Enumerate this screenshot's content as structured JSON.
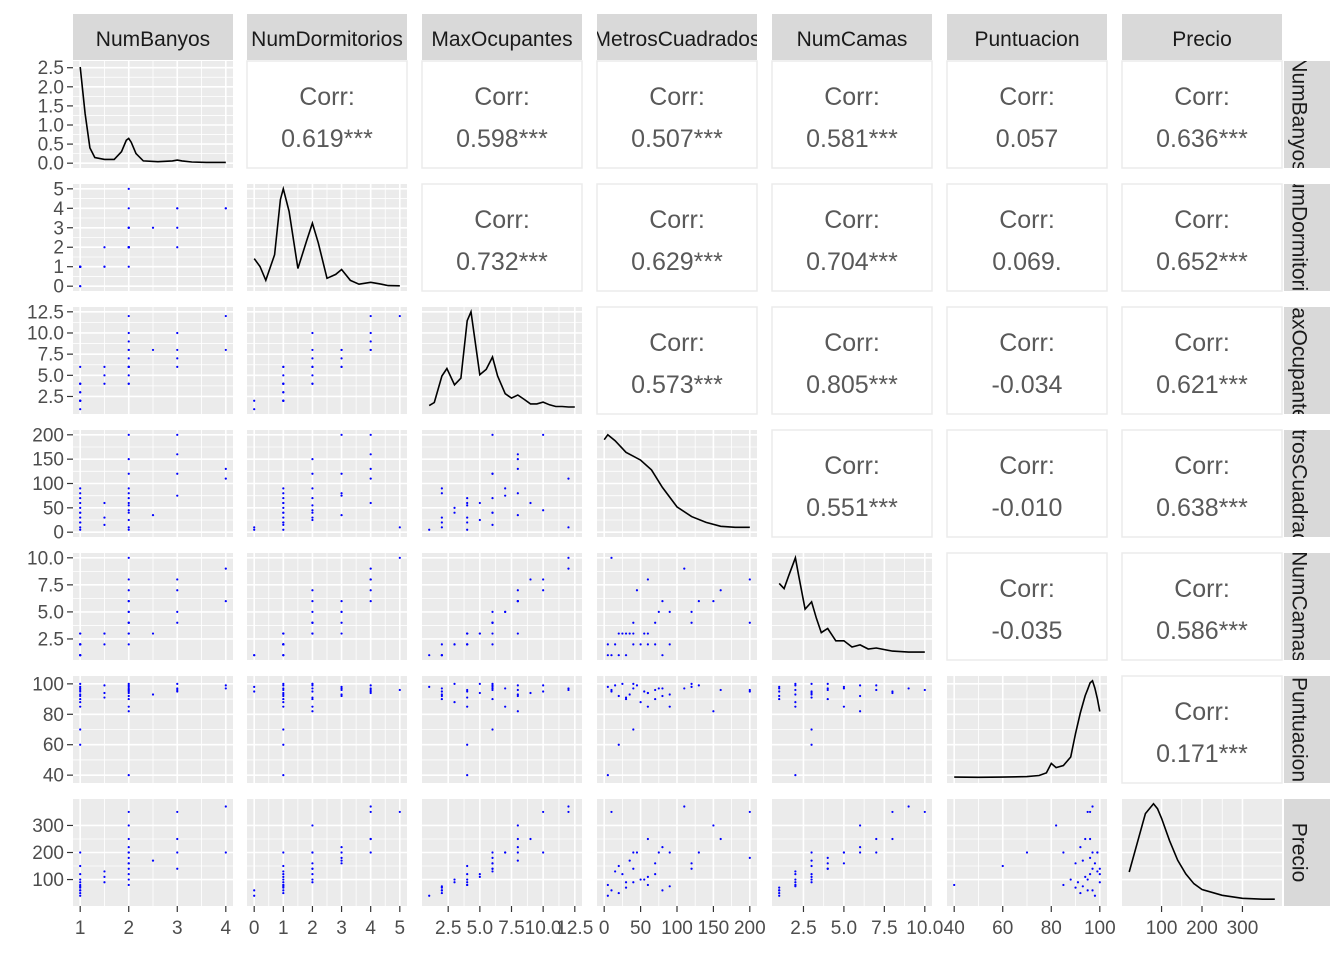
{
  "variables": [
    "NumBanyos",
    "NumDormitorios",
    "MaxOcupantes",
    "MetrosCuadrados",
    "NumCamas",
    "Puntuacion",
    "Precio"
  ],
  "corr_label": "Corr:",
  "colors": {
    "panel": "#ebebeb",
    "grid": "#ffffff",
    "strip": "#d9d9d9",
    "points": "#0000ff",
    "density": "#000000"
  },
  "chart_data": {
    "type": "scatter",
    "subtype": "pairs-matrix",
    "diag": "density",
    "lower": "scatter",
    "upper": "correlation",
    "grid": true,
    "correlations": [
      {
        "row": "NumBanyos",
        "col": "NumDormitorios",
        "text": "0.619***"
      },
      {
        "row": "NumBanyos",
        "col": "MaxOcupantes",
        "text": "0.598***"
      },
      {
        "row": "NumBanyos",
        "col": "MetrosCuadrados",
        "text": "0.507***"
      },
      {
        "row": "NumBanyos",
        "col": "NumCamas",
        "text": "0.581***"
      },
      {
        "row": "NumBanyos",
        "col": "Puntuacion",
        "text": "0.057"
      },
      {
        "row": "NumBanyos",
        "col": "Precio",
        "text": "0.636***"
      },
      {
        "row": "NumDormitorios",
        "col": "MaxOcupantes",
        "text": "0.732***"
      },
      {
        "row": "NumDormitorios",
        "col": "MetrosCuadrados",
        "text": "0.629***"
      },
      {
        "row": "NumDormitorios",
        "col": "NumCamas",
        "text": "0.704***"
      },
      {
        "row": "NumDormitorios",
        "col": "Puntuacion",
        "text": "0.069."
      },
      {
        "row": "NumDormitorios",
        "col": "Precio",
        "text": "0.652***"
      },
      {
        "row": "MaxOcupantes",
        "col": "MetrosCuadrados",
        "text": "0.573***"
      },
      {
        "row": "MaxOcupantes",
        "col": "NumCamas",
        "text": "0.805***"
      },
      {
        "row": "MaxOcupantes",
        "col": "Puntuacion",
        "text": "-0.034"
      },
      {
        "row": "MaxOcupantes",
        "col": "Precio",
        "text": "0.621***"
      },
      {
        "row": "MetrosCuadrados",
        "col": "NumCamas",
        "text": "0.551***"
      },
      {
        "row": "MetrosCuadrados",
        "col": "Puntuacion",
        "text": "-0.010"
      },
      {
        "row": "MetrosCuadrados",
        "col": "Precio",
        "text": "0.638***"
      },
      {
        "row": "NumCamas",
        "col": "Puntuacion",
        "text": "-0.035"
      },
      {
        "row": "NumCamas",
        "col": "Precio",
        "text": "0.586***"
      },
      {
        "row": "Puntuacion",
        "col": "Precio",
        "text": "0.171***"
      }
    ],
    "x_axes": [
      {
        "var": "NumBanyos",
        "range": [
          1,
          4
        ],
        "ticks": [
          1,
          2,
          3,
          4
        ],
        "tick_labels": [
          "1",
          "2",
          "3",
          "4"
        ]
      },
      {
        "var": "NumDormitorios",
        "range": [
          0,
          5
        ],
        "ticks": [
          0,
          1,
          2,
          3,
          4,
          5
        ],
        "tick_labels": [
          "0",
          "1",
          "2",
          "3",
          "4",
          "5"
        ]
      },
      {
        "var": "MaxOcupantes",
        "range": [
          1,
          12.5
        ],
        "ticks": [
          2.5,
          5,
          7.5,
          10,
          12.5
        ],
        "tick_labels": [
          "2.5",
          "5.0",
          "7.5",
          "10.0",
          "12.5"
        ]
      },
      {
        "var": "MetrosCuadrados",
        "range": [
          0,
          200
        ],
        "ticks": [
          0,
          50,
          100,
          150,
          200
        ],
        "tick_labels": [
          "0",
          "50",
          "100",
          "150",
          "200"
        ]
      },
      {
        "var": "NumCamas",
        "range": [
          1,
          10
        ],
        "ticks": [
          2.5,
          5,
          7.5,
          10
        ],
        "tick_labels": [
          "2.5",
          "5.0",
          "7.5",
          "10.0"
        ]
      },
      {
        "var": "Puntuacion",
        "range": [
          40,
          100
        ],
        "ticks": [
          40,
          60,
          80,
          100
        ],
        "tick_labels": [
          "40",
          "60",
          "80",
          "100"
        ]
      },
      {
        "var": "Precio",
        "range": [
          20,
          380
        ],
        "ticks": [
          100,
          200,
          300
        ],
        "tick_labels": [
          "100",
          "200",
          "300"
        ]
      }
    ],
    "y_axes": [
      {
        "var": "NumBanyos",
        "range": [
          0,
          2.55
        ],
        "ticks": [
          0,
          0.5,
          1,
          1.5,
          2,
          2.5
        ],
        "tick_labels": [
          "0.0",
          "0.5",
          "1.0",
          "1.5",
          "2.0",
          "2.5"
        ]
      },
      {
        "var": "NumDormitorios",
        "range": [
          0,
          5
        ],
        "ticks": [
          0,
          1,
          2,
          3,
          4,
          5
        ],
        "tick_labels": [
          "0",
          "1",
          "2",
          "3",
          "4",
          "5"
        ]
      },
      {
        "var": "MaxOcupantes",
        "range": [
          1,
          12.5
        ],
        "ticks": [
          2.5,
          5,
          7.5,
          10,
          12.5
        ],
        "tick_labels": [
          "2.5",
          "5.0",
          "7.5",
          "10.0",
          "12.5"
        ]
      },
      {
        "var": "MetrosCuadrados",
        "range": [
          0,
          200
        ],
        "ticks": [
          0,
          50,
          100,
          150,
          200
        ],
        "tick_labels": [
          "0",
          "50",
          "100",
          "150",
          "200"
        ]
      },
      {
        "var": "NumCamas",
        "range": [
          1,
          10
        ],
        "ticks": [
          2.5,
          5,
          7.5,
          10
        ],
        "tick_labels": [
          "2.5",
          "5.0",
          "7.5",
          "10.0"
        ]
      },
      {
        "var": "Puntuacion",
        "range": [
          38,
          102
        ],
        "ticks": [
          40,
          60,
          80,
          100
        ],
        "tick_labels": [
          "40",
          "60",
          "80",
          "100"
        ]
      },
      {
        "var": "Precio",
        "range": [
          20,
          380
        ],
        "ticks": [
          100,
          200,
          300
        ],
        "tick_labels": [
          "100",
          "200",
          "300"
        ]
      }
    ],
    "densities": [
      {
        "var": "NumBanyos",
        "x": [
          1,
          1.1,
          1.2,
          1.3,
          1.5,
          1.7,
          1.85,
          1.95,
          2.0,
          2.05,
          2.15,
          2.3,
          2.6,
          2.9,
          3.0,
          3.1,
          3.3,
          3.6,
          4.0
        ],
        "y": [
          2.52,
          1.3,
          0.4,
          0.15,
          0.1,
          0.1,
          0.3,
          0.6,
          0.65,
          0.55,
          0.25,
          0.06,
          0.04,
          0.06,
          0.08,
          0.06,
          0.03,
          0.02,
          0.02
        ]
      },
      {
        "var": "NumDormitorios",
        "x": [
          0,
          0.2,
          0.4,
          0.7,
          0.9,
          1.0,
          1.2,
          1.5,
          1.8,
          2.0,
          2.2,
          2.5,
          2.8,
          3.0,
          3.3,
          3.6,
          4.0,
          4.3,
          4.6,
          5.0
        ],
        "y": [
          1.4,
          1.0,
          0.3,
          1.6,
          4.4,
          4.95,
          3.8,
          0.9,
          2.3,
          3.2,
          2.2,
          0.4,
          0.6,
          0.85,
          0.3,
          0.1,
          0.2,
          0.12,
          0.03,
          0.02
        ]
      },
      {
        "var": "MaxOcupantes",
        "x": [
          1,
          1.4,
          2.0,
          2.4,
          3.0,
          3.5,
          4.0,
          4.3,
          5.0,
          5.5,
          6.0,
          6.4,
          7.0,
          7.5,
          8.0,
          8.5,
          9.0,
          9.5,
          10.0,
          10.5,
          11.0,
          11.5,
          12.0,
          12.5
        ],
        "y": [
          0.08,
          0.15,
          0.75,
          0.92,
          0.55,
          0.7,
          2.0,
          2.2,
          0.78,
          0.9,
          1.18,
          0.75,
          0.35,
          0.25,
          0.32,
          0.22,
          0.12,
          0.12,
          0.16,
          0.1,
          0.06,
          0.06,
          0.05,
          0.05
        ]
      },
      {
        "var": "MetrosCuadrados",
        "x": [
          0,
          5,
          15,
          30,
          50,
          65,
          80,
          100,
          120,
          140,
          160,
          180,
          200
        ],
        "y": [
          0.95,
          1.0,
          0.94,
          0.82,
          0.74,
          0.64,
          0.46,
          0.26,
          0.16,
          0.1,
          0.06,
          0.05,
          0.05
        ]
      },
      {
        "var": "NumCamas",
        "x": [
          1,
          1.3,
          1.6,
          2.0,
          2.2,
          2.6,
          3.0,
          3.3,
          3.6,
          4.0,
          4.5,
          5.0,
          5.5,
          6.0,
          6.5,
          7.0,
          8.0,
          9.0,
          10.0
        ],
        "y": [
          0.7,
          0.65,
          0.78,
          0.95,
          0.78,
          0.45,
          0.52,
          0.36,
          0.22,
          0.26,
          0.14,
          0.14,
          0.08,
          0.1,
          0.06,
          0.07,
          0.04,
          0.03,
          0.03
        ]
      },
      {
        "var": "Puntuacion",
        "x": [
          40,
          50,
          60,
          70,
          75,
          78,
          80,
          82,
          85,
          88,
          90,
          92,
          94,
          95,
          96,
          97,
          98,
          99,
          100
        ],
        "y": [
          0.01,
          0.008,
          0.01,
          0.015,
          0.025,
          0.05,
          0.14,
          0.1,
          0.12,
          0.2,
          0.42,
          0.62,
          0.78,
          0.84,
          0.9,
          0.92,
          0.85,
          0.75,
          0.63
        ]
      },
      {
        "var": "Precio",
        "x": [
          20,
          40,
          60,
          80,
          90,
          100,
          120,
          140,
          160,
          180,
          200,
          250,
          300,
          350,
          380
        ],
        "y": [
          0.3,
          0.6,
          0.9,
          1.0,
          0.95,
          0.85,
          0.62,
          0.42,
          0.28,
          0.18,
          0.12,
          0.06,
          0.03,
          0.02,
          0.02
        ]
      }
    ],
    "scatter_sample": {
      "NumBanyos": [
        1,
        1,
        1,
        1,
        1,
        1,
        1,
        1,
        1,
        1,
        1,
        1,
        1.5,
        1.5,
        1.5,
        2,
        2,
        2,
        2,
        2,
        2,
        2,
        2,
        2,
        2,
        2,
        2,
        2,
        2.5,
        3,
        3,
        3,
        3,
        4,
        4
      ],
      "NumDormitorios": [
        0,
        0,
        1,
        1,
        1,
        1,
        1,
        1,
        1,
        1,
        1,
        1,
        1,
        1,
        2,
        1,
        2,
        2,
        2,
        2,
        2,
        2,
        3,
        3,
        3,
        4,
        2,
        5,
        3,
        3,
        2,
        4,
        4,
        4,
        4
      ],
      "MaxOcupantes": [
        1,
        2,
        2,
        2,
        3,
        3,
        4,
        4,
        2,
        2,
        4,
        6,
        5,
        6,
        4,
        4,
        5,
        6,
        4,
        6,
        7,
        8,
        6,
        6,
        8,
        9,
        10,
        12,
        8,
        7,
        6,
        10,
        8,
        8,
        12
      ],
      "MetrosCuadrados": [
        5,
        10,
        20,
        30,
        40,
        50,
        60,
        70,
        80,
        90,
        20,
        40,
        60,
        15,
        30,
        5,
        25,
        40,
        55,
        70,
        90,
        150,
        200,
        120,
        80,
        60,
        45,
        10,
        35,
        75,
        120,
        200,
        160,
        130,
        110
      ],
      "NumCamas": [
        1,
        1,
        1,
        1,
        2,
        2,
        2,
        2,
        1,
        2,
        3,
        3,
        3,
        2,
        3,
        2,
        3,
        4,
        3,
        4,
        5,
        6,
        4,
        5,
        6,
        8,
        7,
        10,
        3,
        5,
        4,
        8,
        7,
        6,
        9
      ],
      "Puntuacion": [
        98,
        95,
        92,
        90,
        100,
        88,
        85,
        96,
        97,
        93,
        60,
        70,
        94,
        99,
        91,
        40,
        100,
        97,
        95,
        90,
        85,
        82,
        96,
        98,
        92,
        94,
        99,
        96,
        93,
        97,
        100,
        95,
        96,
        99,
        97
      ],
      "Precio": [
        40,
        60,
        50,
        70,
        90,
        100,
        80,
        120,
        60,
        75,
        150,
        200,
        110,
        130,
        90,
        80,
        120,
        140,
        100,
        160,
        200,
        300,
        180,
        160,
        220,
        250,
        200,
        350,
        170,
        200,
        140,
        350,
        250,
        200,
        370
      ]
    }
  }
}
